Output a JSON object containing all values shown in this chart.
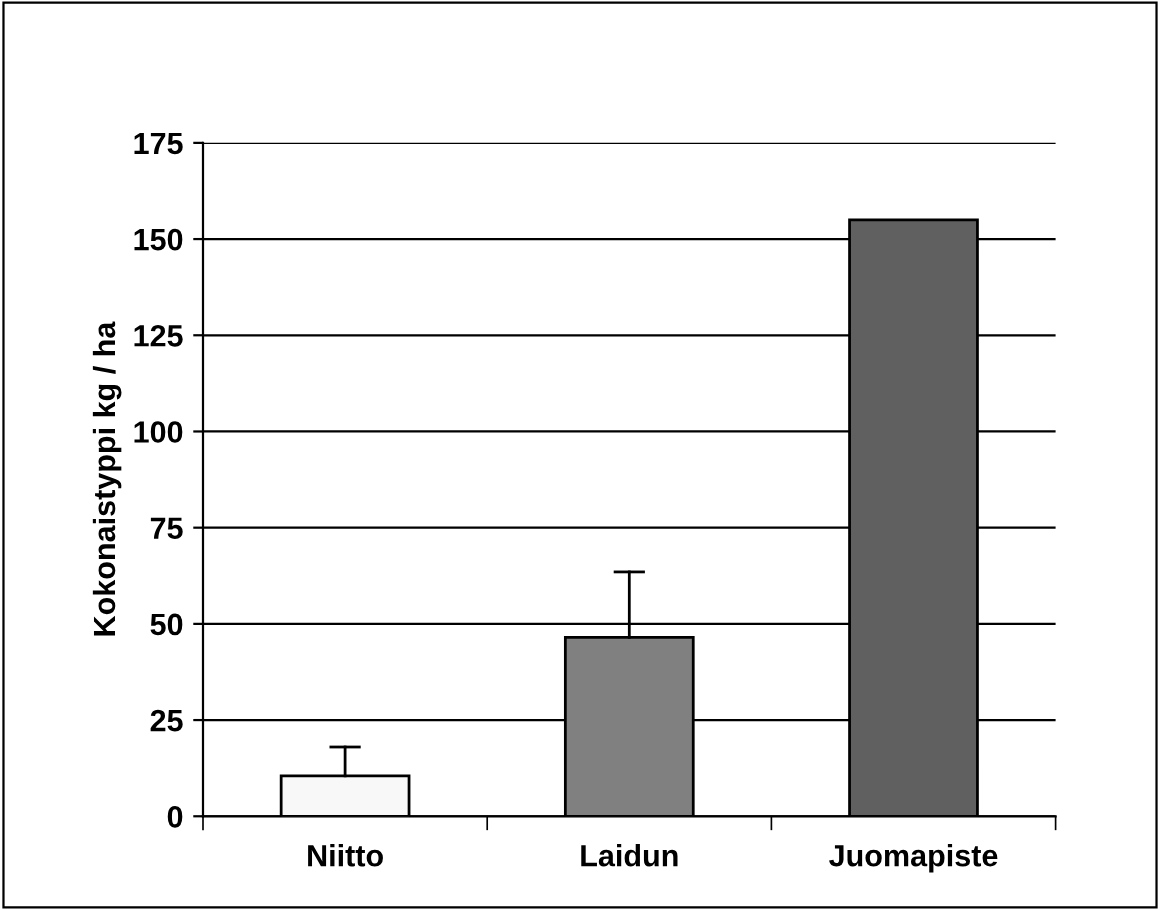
{
  "chart_data": {
    "type": "bar",
    "ylabel": "Kokonaistyppi kg / ha",
    "categories": [
      "Niitto",
      "Laidun",
      "Juomapiste"
    ],
    "values": [
      10.5,
      46.5,
      155
    ],
    "colors": [
      "#f8f8f8",
      "#808080",
      "#606060"
    ],
    "errors": [
      [
        10.5,
        18
      ],
      [
        46.5,
        63.5
      ],
      null
    ],
    "ylim": [
      0,
      175
    ],
    "yticks": [
      0,
      25,
      50,
      75,
      100,
      125,
      150,
      175
    ],
    "grid": "y"
  }
}
